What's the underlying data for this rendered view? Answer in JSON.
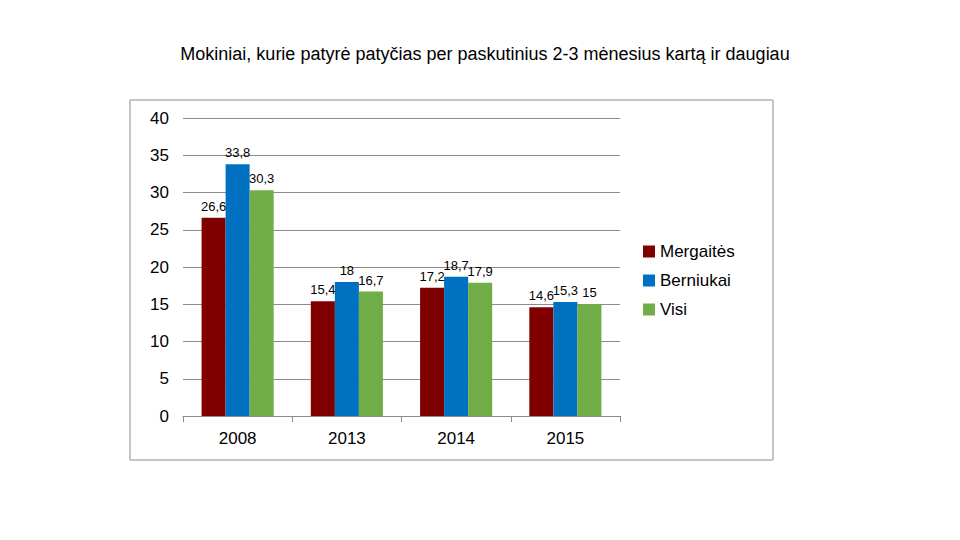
{
  "chart_data": {
    "type": "bar",
    "title": "Mokiniai, kurie patyrė patyčias per paskutinius 2-3 mėnesius kartą ir daugiau",
    "categories": [
      "2008",
      "2013",
      "2014",
      "2015"
    ],
    "series": [
      {
        "name": "Mergaitės",
        "color": "#800000",
        "values": [
          26.6,
          15.4,
          17.2,
          14.6
        ],
        "value_labels": [
          "26,6",
          "15,4",
          "17,2",
          "14,6"
        ]
      },
      {
        "name": "Berniukai",
        "color": "#0070c0",
        "values": [
          33.8,
          18,
          18.7,
          15.3
        ],
        "value_labels": [
          "33,8",
          "18",
          "18,7",
          "15,3"
        ]
      },
      {
        "name": "Visi",
        "color": "#70ad47",
        "values": [
          30.3,
          16.7,
          17.9,
          15
        ],
        "value_labels": [
          "30,3",
          "16,7",
          "17,9",
          "15"
        ]
      }
    ],
    "ylim": [
      0,
      40
    ],
    "yticks": [
      0,
      5,
      10,
      15,
      20,
      25,
      30,
      35,
      40
    ],
    "grid": true,
    "legend": "right",
    "data_labels": true
  }
}
